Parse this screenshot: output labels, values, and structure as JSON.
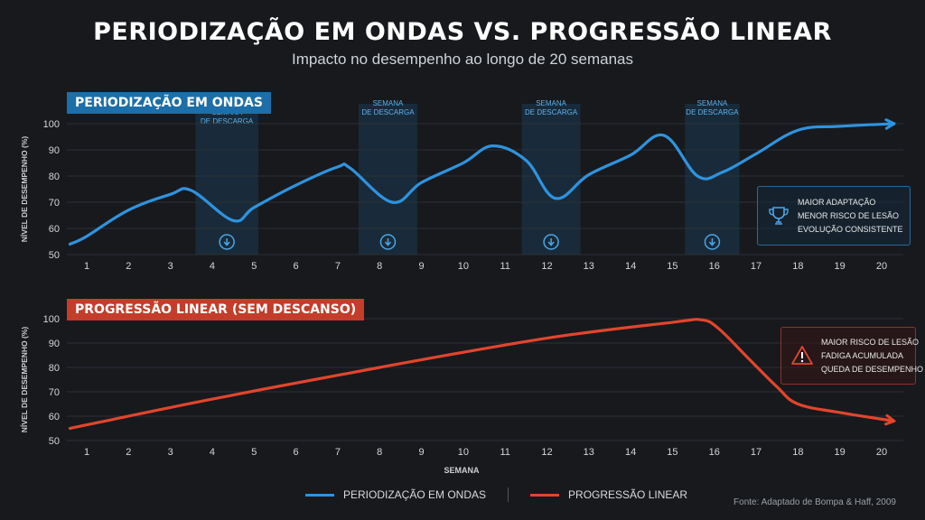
{
  "title": "PERIODIZAÇÃO EM ONDAS VS. PROGRESSÃO LINEAR",
  "subtitle": "Impacto no desempenho ao longo de 20 semanas",
  "colors": {
    "wave": "#2f93df",
    "linear": "#e2452d",
    "background": "#17191d",
    "band": "#1b3a52"
  },
  "chart_data": [
    {
      "type": "line",
      "title": "PERIODIZAÇÃO EM ONDAS",
      "ylabel": "NÍVEL DE DESEMPENHO (%)",
      "xlabel": "",
      "ylim": [
        50,
        100
      ],
      "yticks": [
        "50",
        "60",
        "70",
        "80",
        "90",
        "100"
      ],
      "xticks": [
        "1",
        "2",
        "3",
        "4",
        "5",
        "6",
        "7",
        "8",
        "9",
        "10",
        "11",
        "12",
        "13",
        "14",
        "15",
        "16",
        "17",
        "18",
        "19",
        "20"
      ],
      "grid": true,
      "series": [
        {
          "name": "PERIODIZAÇÃO EM ONDAS",
          "x": [
            0.6,
            1,
            2,
            3,
            3.5,
            4.5,
            5,
            6,
            7,
            7.3,
            8.3,
            9,
            10,
            10.7,
            11.5,
            12.2,
            13,
            14,
            14.8,
            15.6,
            16.2,
            17,
            18,
            19,
            20.3
          ],
          "y": [
            54,
            57,
            67,
            73,
            74.5,
            63,
            68,
            76.5,
            83.5,
            83,
            70,
            77.5,
            85,
            91.5,
            86,
            71.5,
            80.5,
            88,
            95.5,
            80,
            81.5,
            88.5,
            97.5,
            99,
            100
          ]
        }
      ],
      "bands": [
        {
          "from": 3.6,
          "to": 5.1,
          "label": "SEMANA\nDE DESCARGA"
        },
        {
          "from": 7.5,
          "to": 8.9,
          "label": "SEMANA\nDE DESCARGA"
        },
        {
          "from": 11.4,
          "to": 12.8,
          "label": "SEMANA\nDE DESCARGA"
        },
        {
          "from": 15.3,
          "to": 16.6,
          "label": "SEMANA\nDE DESCARGA"
        }
      ],
      "annotation": [
        "MAIOR ADAPTAÇÃO",
        "MENOR RISCO DE LESÃO",
        "EVOLUÇÃO CONSISTENTE"
      ]
    },
    {
      "type": "line",
      "title": "PROGRESSÃO LINEAR (SEM DESCANSO)",
      "ylabel": "NÍVEL DE DESEMPENHO (%)",
      "xlabel": "SEMANA",
      "ylim": [
        50,
        100
      ],
      "yticks": [
        "50",
        "60",
        "70",
        "80",
        "90",
        "100"
      ],
      "xticks": [
        "1",
        "2",
        "3",
        "4",
        "5",
        "6",
        "7",
        "8",
        "9",
        "10",
        "11",
        "12",
        "13",
        "14",
        "15",
        "16",
        "17",
        "18",
        "19",
        "20"
      ],
      "grid": true,
      "series": [
        {
          "name": "PROGRESSÃO LINEAR",
          "x": [
            0.6,
            4,
            8,
            12,
            15,
            15.7,
            16.1,
            16.8,
            17.5,
            18,
            19,
            20.3
          ],
          "y": [
            55,
            67,
            80,
            92,
            98.5,
            99.5,
            96,
            84,
            72,
            65,
            61.5,
            58
          ]
        }
      ],
      "annotation": [
        "MAIOR RISCO DE LESÃO",
        "FADIGA ACUMULADA",
        "QUEDA DE DESEMPENHO"
      ]
    }
  ],
  "legend": [
    {
      "label": "PERIODIZAÇÃO EM ONDAS"
    },
    {
      "label": "PROGRESSÃO LINEAR"
    }
  ],
  "source": "Fonte: Adaptado de Bompa & Haff, 2009"
}
